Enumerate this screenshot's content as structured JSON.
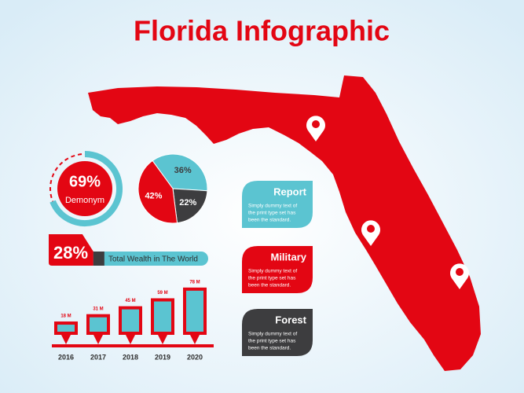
{
  "title": "Florida Infographic",
  "donut": {
    "value": 69,
    "label": "69%",
    "caption": "Demonym"
  },
  "pie": {
    "values": [
      36,
      22,
      42
    ],
    "value_labels": [
      "36%",
      "22%",
      "42%"
    ],
    "colors": [
      "#5bc4d1",
      "#3d3d3f",
      "#e30613"
    ]
  },
  "wealth": {
    "value": 28,
    "label": "28%",
    "caption": "Total Wealth in The World"
  },
  "bars": {
    "categories": [
      "2016",
      "2017",
      "2018",
      "2019",
      "2020"
    ],
    "values": [
      18,
      31,
      45,
      59,
      78
    ],
    "value_labels": [
      "18 M",
      "31 M",
      "45 M",
      "59 M",
      "78 M"
    ]
  },
  "cards": [
    {
      "title": "Report",
      "color": "#5bc4d1",
      "lines": [
        "Simply dummy text of",
        "the print type set has",
        "been the standard."
      ]
    },
    {
      "title": "Military",
      "color": "#e30613",
      "lines": [
        "Simply dummy text of",
        "the print type set has",
        "been the standard."
      ]
    },
    {
      "title": "Forest",
      "color": "#3d3d3f",
      "lines": [
        "Simply dummy text of",
        "the print type set has",
        "been the standard."
      ]
    }
  ]
}
